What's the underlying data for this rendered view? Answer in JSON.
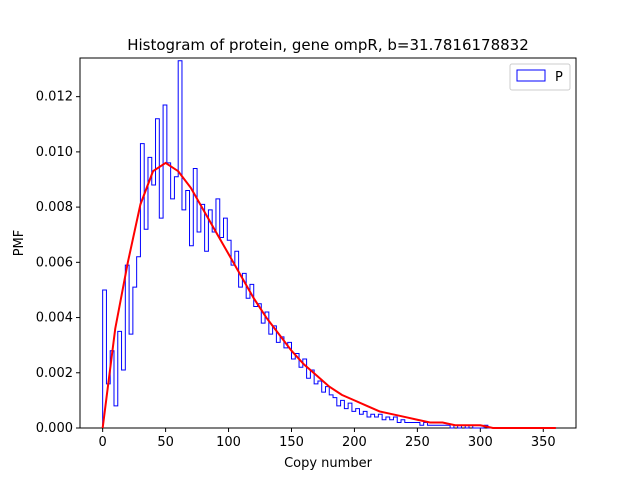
{
  "chart_data": {
    "type": "histogram",
    "title": "Histogram of protein, gene ompR, b=31.7816178832",
    "xlabel": "Copy number",
    "ylabel": "PMF",
    "xlim": [
      -18,
      376
    ],
    "ylim": [
      0,
      0.0134
    ],
    "x_ticks": [
      0,
      50,
      100,
      150,
      200,
      250,
      300,
      350
    ],
    "x_tick_labels": [
      "0",
      "50",
      "100",
      "150",
      "200",
      "250",
      "300",
      "350"
    ],
    "y_ticks": [
      0,
      0.002,
      0.004,
      0.006,
      0.008,
      0.01,
      0.012
    ],
    "y_tick_labels": [
      "0.000",
      "0.002",
      "0.004",
      "0.006",
      "0.008",
      "0.010",
      "0.012"
    ],
    "grid": false,
    "legend_position": "top-right",
    "series": [
      {
        "name": "P",
        "kind": "step",
        "color": "#0000ff",
        "x": [
          0,
          3,
          6,
          9,
          12,
          15,
          18,
          21,
          24,
          27,
          30,
          33,
          36,
          39,
          42,
          45,
          48,
          51,
          54,
          57,
          60,
          63,
          66,
          69,
          72,
          75,
          78,
          81,
          84,
          87,
          90,
          93,
          96,
          99,
          102,
          105,
          108,
          111,
          114,
          117,
          120,
          123,
          126,
          129,
          132,
          135,
          138,
          141,
          144,
          147,
          150,
          153,
          156,
          159,
          162,
          165,
          168,
          171,
          174,
          177,
          180,
          183,
          186,
          189,
          192,
          195,
          198,
          201,
          204,
          207,
          210,
          213,
          216,
          219,
          222,
          225,
          228,
          231,
          234,
          237,
          240,
          243,
          246,
          249,
          252,
          255,
          258,
          261,
          264,
          267,
          270,
          273,
          276,
          279,
          282,
          285,
          288,
          291,
          294,
          297,
          300,
          303,
          306,
          309,
          312,
          315,
          318,
          321,
          324,
          327,
          330,
          333,
          336,
          339
        ],
        "values": [
          0.005,
          0.0016,
          0.0028,
          0.0008,
          0.0035,
          0.0021,
          0.0059,
          0.0034,
          0.0051,
          0.0062,
          0.0103,
          0.0072,
          0.0098,
          0.0088,
          0.0112,
          0.0076,
          0.0117,
          0.0096,
          0.0083,
          0.0091,
          0.0133,
          0.0079,
          0.0086,
          0.0066,
          0.0094,
          0.0071,
          0.0081,
          0.0064,
          0.0079,
          0.0071,
          0.0083,
          0.0069,
          0.0076,
          0.0068,
          0.0059,
          0.0064,
          0.0051,
          0.0056,
          0.0047,
          0.0052,
          0.0044,
          0.0045,
          0.0038,
          0.0042,
          0.0034,
          0.0037,
          0.0031,
          0.0033,
          0.0029,
          0.0031,
          0.0025,
          0.0027,
          0.0022,
          0.0025,
          0.0018,
          0.0021,
          0.0016,
          0.0017,
          0.0013,
          0.0015,
          0.0012,
          0.0011,
          0.0008,
          0.001,
          0.0007,
          0.0009,
          0.0006,
          0.0007,
          0.0005,
          0.0006,
          0.0004,
          0.0005,
          0.0004,
          0.0005,
          0.0003,
          0.0004,
          0.0003,
          0.0004,
          0.0002,
          0.0003,
          0.0002,
          0.0002,
          0.0002,
          0.0002,
          0.0001,
          0.0002,
          0.0001,
          0.0001,
          0.0001,
          0.0001,
          0.0001,
          0.0001,
          0.0,
          0.0001,
          0.0,
          0.0001,
          0.0,
          0.0001,
          0.0,
          0.0,
          0.0,
          0.0001,
          0.0,
          0.0,
          0.0,
          0.0,
          0.0,
          0.0,
          0.0,
          0.0,
          0.0,
          0.0,
          0.0,
          0.0
        ]
      },
      {
        "kind": "line",
        "color": "#ff0000",
        "x": [
          0,
          10,
          20,
          30,
          40,
          50,
          60,
          70,
          80,
          90,
          100,
          110,
          120,
          130,
          140,
          150,
          160,
          170,
          180,
          190,
          200,
          210,
          220,
          230,
          240,
          250,
          260,
          270,
          280,
          290,
          300,
          310,
          320,
          330,
          340,
          350,
          360
        ],
        "values": [
          0.0,
          0.0036,
          0.006,
          0.0081,
          0.0093,
          0.0096,
          0.0093,
          0.0087,
          0.0079,
          0.0071,
          0.0063,
          0.0055,
          0.0047,
          0.004,
          0.0034,
          0.0028,
          0.0023,
          0.0019,
          0.0015,
          0.0012,
          0.001,
          0.0008,
          0.0006,
          0.0005,
          0.0004,
          0.0003,
          0.0002,
          0.0002,
          0.0001,
          0.0001,
          0.0001,
          0.0,
          0.0,
          0.0,
          0.0,
          0.0,
          0.0
        ]
      }
    ]
  }
}
